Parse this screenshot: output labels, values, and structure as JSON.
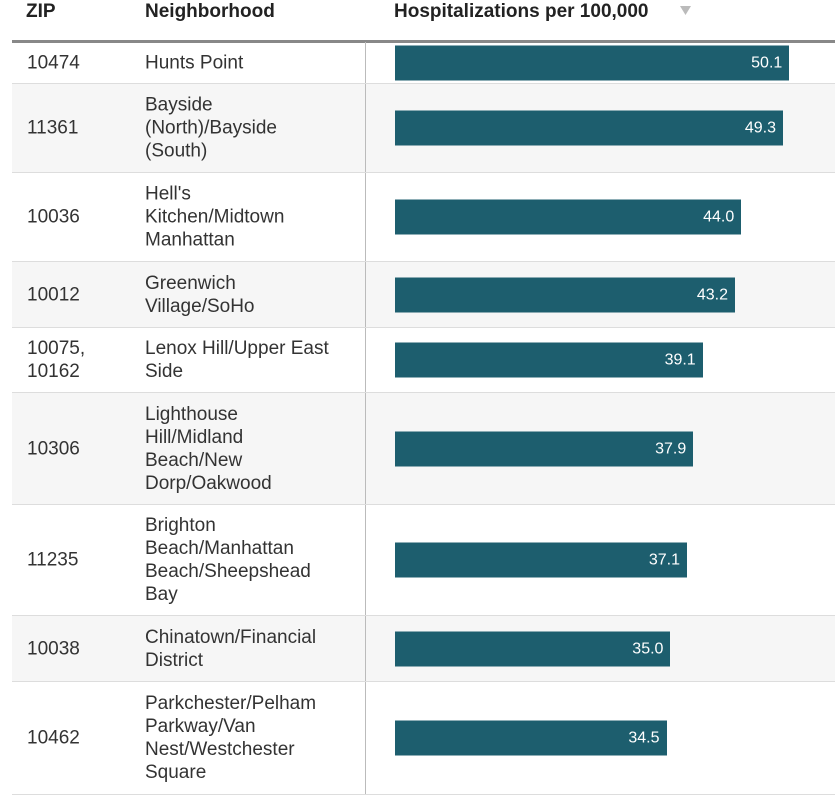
{
  "table": {
    "columns": [
      "ZIP",
      "Neighborhood",
      "Hospitalizations per 100,000"
    ],
    "zips": [
      "10474",
      "11361",
      "10036",
      "10012",
      "10075, 10162",
      "10306",
      "11235",
      "10038",
      "10462"
    ],
    "neighborhoods": [
      "Hunts Point",
      "Bayside (North)/Bayside (South)",
      "Hell's Kitchen/Midtown Manhattan",
      "Greenwich Village/SoHo",
      "Lenox Hill/Upper East Side",
      "Lighthouse Hill/Midland Beach/New Dorp/Oakwood",
      "Brighton Beach/Manhattan Beach/Sheepshead Bay",
      "Chinatown/Financial District",
      "Parkchester/Pelham Parkway/Van Nest/Westchester Square"
    ],
    "values": [
      50.1,
      49.3,
      44.0,
      43.2,
      39.1,
      37.9,
      37.1,
      35.0,
      34.5
    ],
    "value_labels": [
      "50.1",
      "49.3",
      "44.0",
      "43.2",
      "39.1",
      "37.9",
      "37.1",
      "35.0",
      "34.5"
    ],
    "bar_color": "#1d5e6e"
  }
}
